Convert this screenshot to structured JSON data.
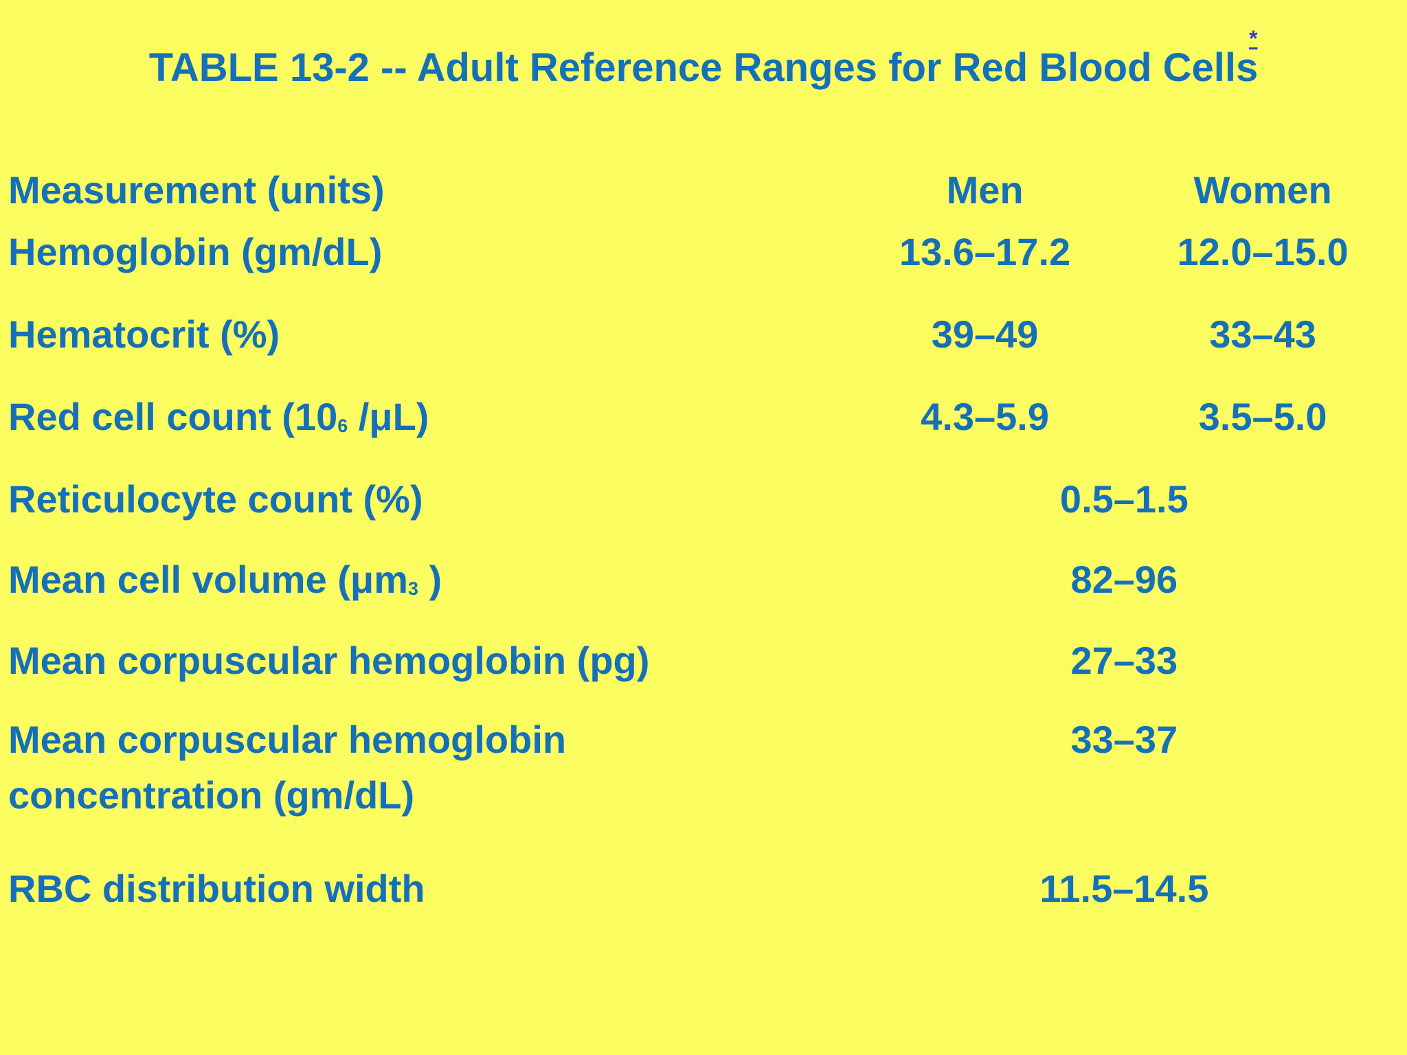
{
  "colors": {
    "background": "#fafc60",
    "text_blue": "#1570b8",
    "footnote_link": "#3a3ac8"
  },
  "title": {
    "text": "TABLE 13-2 -- Adult Reference Ranges for Red Blood Cells",
    "footnote_marker": "*"
  },
  "table": {
    "header": {
      "measurement": "Measurement (units)",
      "men": "Men",
      "women": "Women"
    },
    "rows": [
      {
        "label": "Hemoglobin (gm/dL)",
        "men": "13.6–17.2",
        "women": "12.0–15.0"
      },
      {
        "label": "Hematocrit (%)",
        "men": "39–49",
        "women": "33–43"
      },
      {
        "label_prefix": "Red cell count (10",
        "label_sub": "6",
        "label_suffix": " /μL)",
        "men": "4.3–5.9",
        "women": "3.5–5.0"
      },
      {
        "label": "Reticulocyte count (%)",
        "merged": "0.5–1.5"
      },
      {
        "label_prefix": "Mean cell volume (μm",
        "label_sub": "3",
        "label_suffix": " )",
        "merged": "82–96"
      },
      {
        "label": "Mean corpuscular hemoglobin (pg)",
        "merged": "27–33"
      },
      {
        "label": "Mean corpuscular hemoglobin concentration (gm/dL)",
        "merged": "33–37"
      },
      {
        "label": "RBC distribution width",
        "merged": "11.5–14.5"
      }
    ]
  }
}
